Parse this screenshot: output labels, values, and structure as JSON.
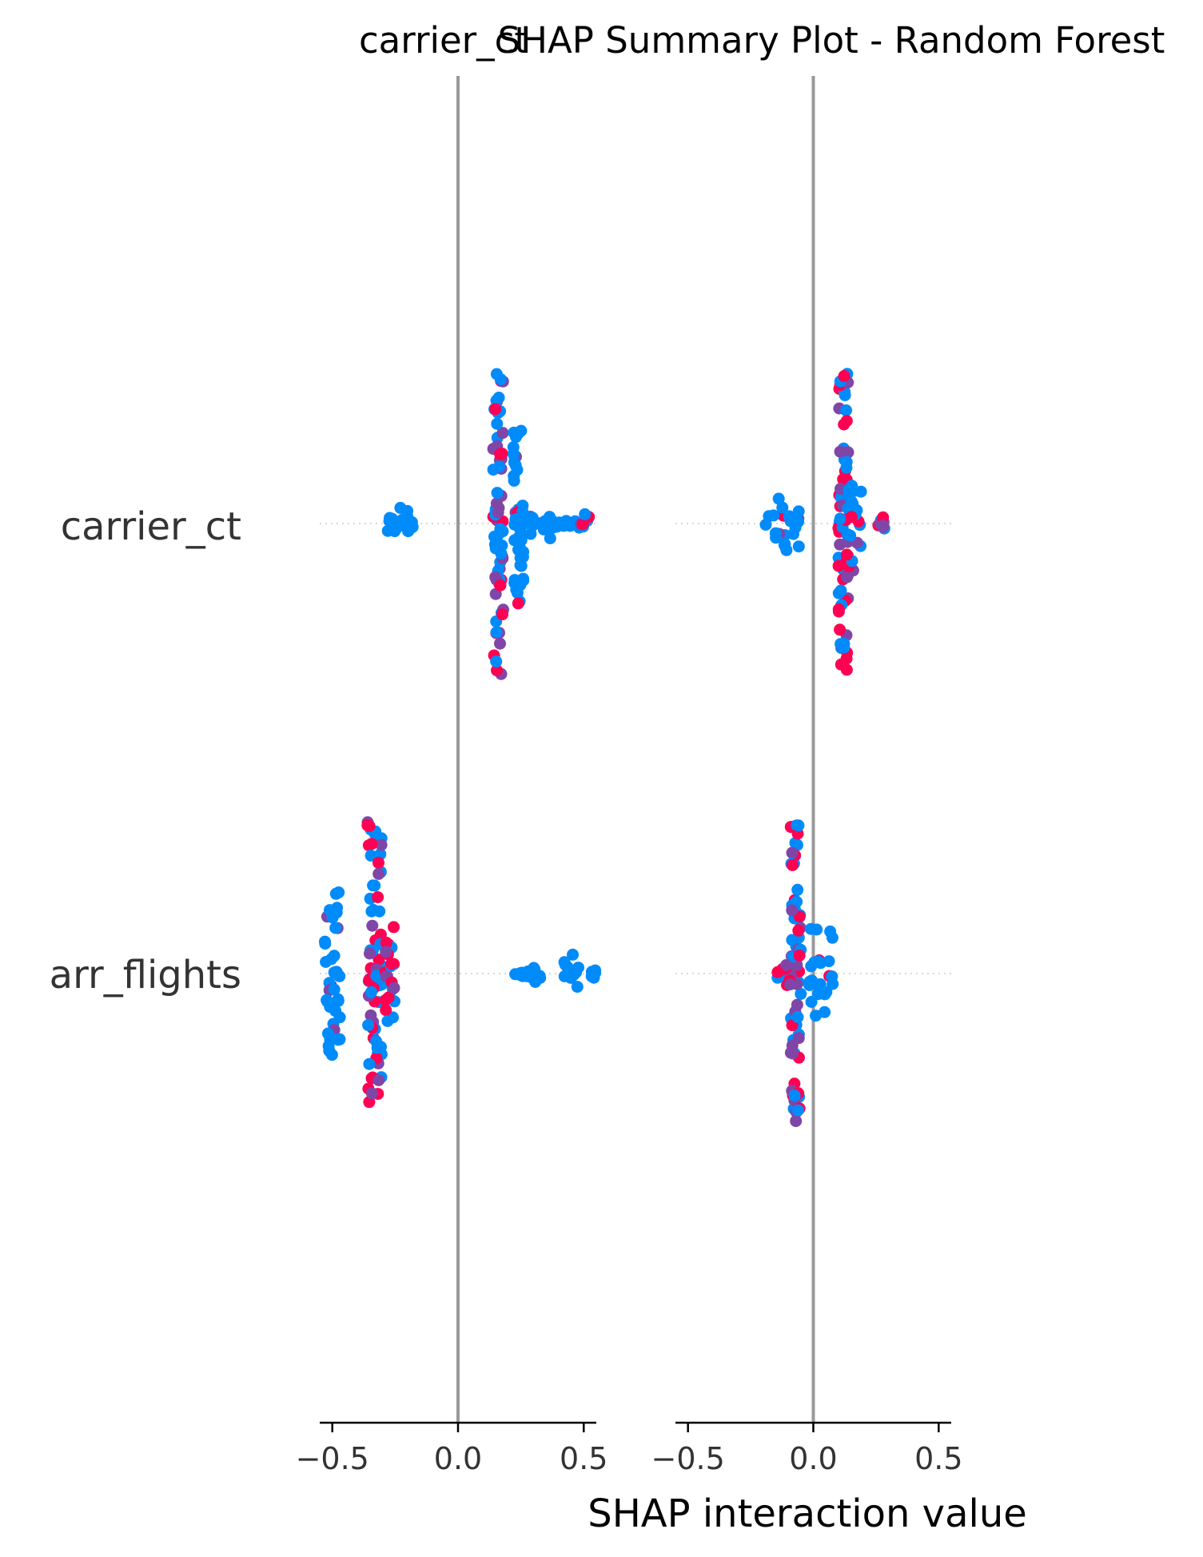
{
  "chart_data": {
    "type": "scatter",
    "title": "SHAP Summary Plot - Random Forest",
    "xlabel": "SHAP interaction value",
    "features": [
      "carrier_ct",
      "arr_flights"
    ],
    "panels": [
      {
        "title": "carrier_ct"
      },
      {
        "title": ""
      }
    ],
    "xlim": [
      -0.55,
      0.55
    ],
    "xticks": [
      -0.5,
      0.0,
      0.5
    ],
    "xtick_labels": [
      "−0.5",
      "0.0",
      "0.5"
    ],
    "grid": false,
    "colors": {
      "low": "#008bfb",
      "high": "#ff0052",
      "mid": "#7b3fd2",
      "zero_line": "#999999",
      "axis": "#000000",
      "guide": "#cccccc"
    },
    "series": [
      {
        "panel": 0,
        "feature": "carrier_ct",
        "clusters": [
          {
            "x": -0.24,
            "spread": 0.06,
            "height": 0.12,
            "color_mix": 0.0
          },
          {
            "x": 0.16,
            "spread": 0.02,
            "height": 0.95,
            "color_mix": 0.55
          },
          {
            "x": 0.24,
            "spread": 0.02,
            "height": 0.6,
            "color_mix": 0.1
          },
          {
            "x": 0.3,
            "spread": 0.08,
            "height": 0.1,
            "color_mix": 0.05
          },
          {
            "x": 0.45,
            "spread": 0.08,
            "height": 0.06,
            "color_mix": 0.05
          }
        ]
      },
      {
        "panel": 0,
        "feature": "arr_flights",
        "clusters": [
          {
            "x": -0.5,
            "spread": 0.03,
            "height": 0.52,
            "color_mix": 0.2
          },
          {
            "x": -0.33,
            "spread": 0.03,
            "height": 0.95,
            "color_mix": 0.5
          },
          {
            "x": -0.27,
            "spread": 0.02,
            "height": 0.3,
            "color_mix": 0.6
          },
          {
            "x": 0.27,
            "spread": 0.06,
            "height": 0.06,
            "color_mix": 0.0
          },
          {
            "x": 0.45,
            "spread": 0.03,
            "height": 0.12,
            "color_mix": 0.0
          },
          {
            "x": 0.54,
            "spread": 0.01,
            "height": 0.04,
            "color_mix": 0.0
          }
        ]
      },
      {
        "panel": 1,
        "feature": "carrier_ct",
        "clusters": [
          {
            "x": -0.12,
            "spread": 0.07,
            "height": 0.18,
            "color_mix": 0.05
          },
          {
            "x": 0.12,
            "spread": 0.02,
            "height": 0.95,
            "color_mix": 0.6
          },
          {
            "x": 0.16,
            "spread": 0.03,
            "height": 0.3,
            "color_mix": 0.4
          },
          {
            "x": 0.27,
            "spread": 0.02,
            "height": 0.04,
            "color_mix": 0.7
          }
        ]
      },
      {
        "panel": 1,
        "feature": "arr_flights",
        "clusters": [
          {
            "x": -0.07,
            "spread": 0.02,
            "height": 0.95,
            "color_mix": 0.45
          },
          {
            "x": -0.12,
            "spread": 0.03,
            "height": 0.08,
            "color_mix": 0.7
          },
          {
            "x": 0.03,
            "spread": 0.05,
            "height": 0.28,
            "color_mix": 0.1
          }
        ]
      }
    ]
  }
}
